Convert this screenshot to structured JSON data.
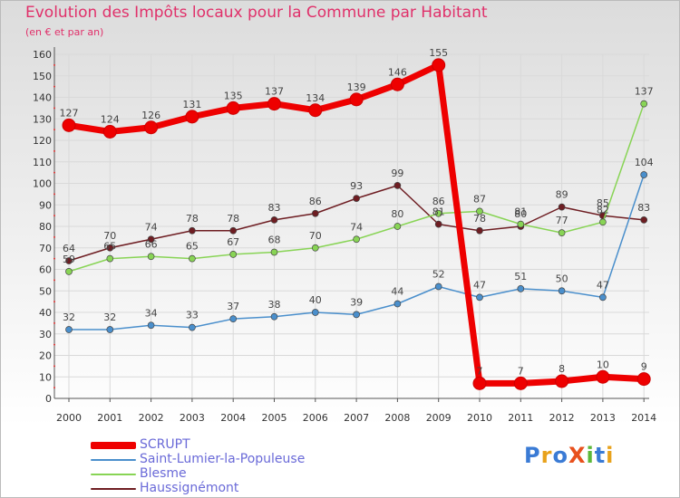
{
  "chart_data": {
    "type": "line",
    "title": "Evolution des Impôts locaux pour la Commune par Habitant",
    "subtitle": "(en € et par an)",
    "xlabel": "",
    "ylabel": "",
    "categories": [
      "2000",
      "2001",
      "2002",
      "2003",
      "2004",
      "2005",
      "2006",
      "2007",
      "2008",
      "2009",
      "2010",
      "2011",
      "2012",
      "2013",
      "2014"
    ],
    "ylim": [
      0,
      160
    ],
    "yticks": [
      0,
      10,
      20,
      30,
      40,
      50,
      60,
      70,
      80,
      90,
      100,
      110,
      120,
      130,
      140,
      150,
      160
    ],
    "series": [
      {
        "name": "SCRUPT",
        "color": "#ee0000",
        "values": [
          127,
          124,
          126,
          131,
          135,
          137,
          134,
          139,
          146,
          155,
          7,
          7,
          8,
          10,
          9
        ]
      },
      {
        "name": "Saint-Lumier-la-Populeuse",
        "color": "#4a8fcc",
        "values": [
          32,
          32,
          34,
          33,
          37,
          38,
          40,
          39,
          44,
          52,
          47,
          51,
          50,
          47,
          104
        ]
      },
      {
        "name": "Blesme",
        "color": "#88d455",
        "values": [
          59,
          65,
          66,
          65,
          67,
          68,
          70,
          74,
          80,
          86,
          87,
          81,
          77,
          82,
          137
        ]
      },
      {
        "name": "Haussignémont",
        "color": "#6e1d22",
        "values": [
          64,
          70,
          74,
          78,
          78,
          83,
          86,
          93,
          99,
          81,
          78,
          80,
          89,
          85,
          83
        ]
      }
    ]
  },
  "logo": {
    "text": "ProXiti"
  }
}
